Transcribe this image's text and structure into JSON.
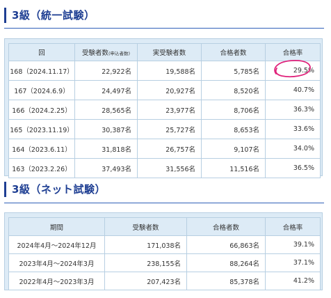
{
  "section1": {
    "title": "3級（統一試験）",
    "headers": {
      "session": "回",
      "examinees": "受験者数",
      "examinees_note": "(申込者数)",
      "actual_examinees": "実受験者数",
      "passers": "合格者数",
      "pass_rate": "合格率"
    },
    "rows": [
      {
        "session": "168（2024.11.17）",
        "examinees": "22,922名",
        "actual": "19,588名",
        "passers": "5,785名",
        "rate": "29.5%",
        "circled": true
      },
      {
        "session": "167（2024.6.9）",
        "examinees": "24,497名",
        "actual": "20,927名",
        "passers": "8,520名",
        "rate": "40.7%"
      },
      {
        "session": "166（2024.2.25）",
        "examinees": "28,565名",
        "actual": "23,977名",
        "passers": "8,706名",
        "rate": "36.3%"
      },
      {
        "session": "165（2023.11.19）",
        "examinees": "30,387名",
        "actual": "25,727名",
        "passers": "8,653名",
        "rate": "33.6%"
      },
      {
        "session": "164（2023.6.11）",
        "examinees": "31,818名",
        "actual": "26,757名",
        "passers": "9,107名",
        "rate": "34.0%"
      },
      {
        "session": "163（2023.2.26）",
        "examinees": "37,493名",
        "actual": "31,556名",
        "passers": "11,516名",
        "rate": "36.5%"
      }
    ]
  },
  "section2": {
    "title": "3級（ネット試験）",
    "headers": {
      "period": "期間",
      "examinees": "受験者数",
      "passers": "合格者数",
      "pass_rate": "合格率"
    },
    "rows": [
      {
        "period": "2024年4月～2024年12月",
        "examinees": "171,038名",
        "passers": "66,863名",
        "rate": "39.1%"
      },
      {
        "period": "2023年4月～2024年3月",
        "examinees": "238,155名",
        "passers": "88,264名",
        "rate": "37.1%"
      },
      {
        "period": "2022年4月～2023年3月",
        "examinees": "207,423名",
        "passers": "85,378名",
        "rate": "41.2%"
      }
    ]
  },
  "colors": {
    "heading": "#1f3f93",
    "header_bg": "#ddebf6",
    "border": "#b7cfe2",
    "annotation": "#e0217a"
  }
}
